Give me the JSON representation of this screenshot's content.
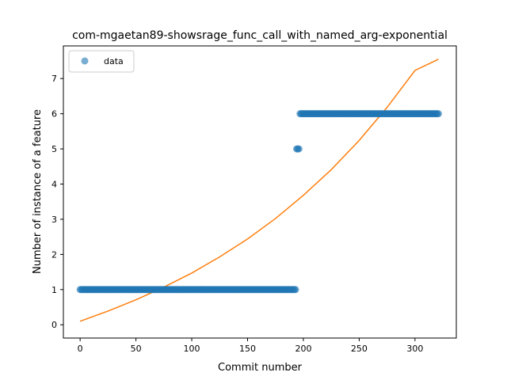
{
  "chart_data": {
    "type": "scatter",
    "title": "com-mgaetan89-showsrage_func_call_with_named_arg-exponential",
    "xlabel": "Commit number",
    "ylabel": "Number of instance of a feature",
    "xlim": [
      -15,
      337
    ],
    "ylim": [
      -0.3775,
      7.9275
    ],
    "x_ticks": [
      0,
      50,
      100,
      150,
      200,
      250,
      300
    ],
    "y_ticks": [
      0,
      1,
      2,
      3,
      4,
      5,
      6,
      7
    ],
    "legend": {
      "position": "top-left",
      "entries": [
        "data"
      ]
    },
    "series": [
      {
        "name": "data",
        "kind": "scatter",
        "color": "#1f77b4",
        "segments": [
          {
            "x_start": 0,
            "x_end": 193,
            "y": 1
          },
          {
            "x_start": 194,
            "x_end": 196,
            "y": 5
          },
          {
            "x_start": 197,
            "x_end": 321,
            "y": 6
          }
        ]
      },
      {
        "kind": "line",
        "color": "#ff7f0e",
        "fit": "exponential",
        "x_range": [
          0,
          321
        ],
        "points": [
          [
            0,
            0.1
          ],
          [
            25,
            0.39
          ],
          [
            50,
            0.71
          ],
          [
            75,
            1.07
          ],
          [
            100,
            1.47
          ],
          [
            125,
            1.93
          ],
          [
            150,
            2.44
          ],
          [
            175,
            3.02
          ],
          [
            200,
            3.68
          ],
          [
            225,
            4.41
          ],
          [
            250,
            5.24
          ],
          [
            275,
            6.18
          ],
          [
            300,
            7.23
          ],
          [
            321,
            7.55
          ]
        ]
      }
    ],
    "grid": false
  }
}
